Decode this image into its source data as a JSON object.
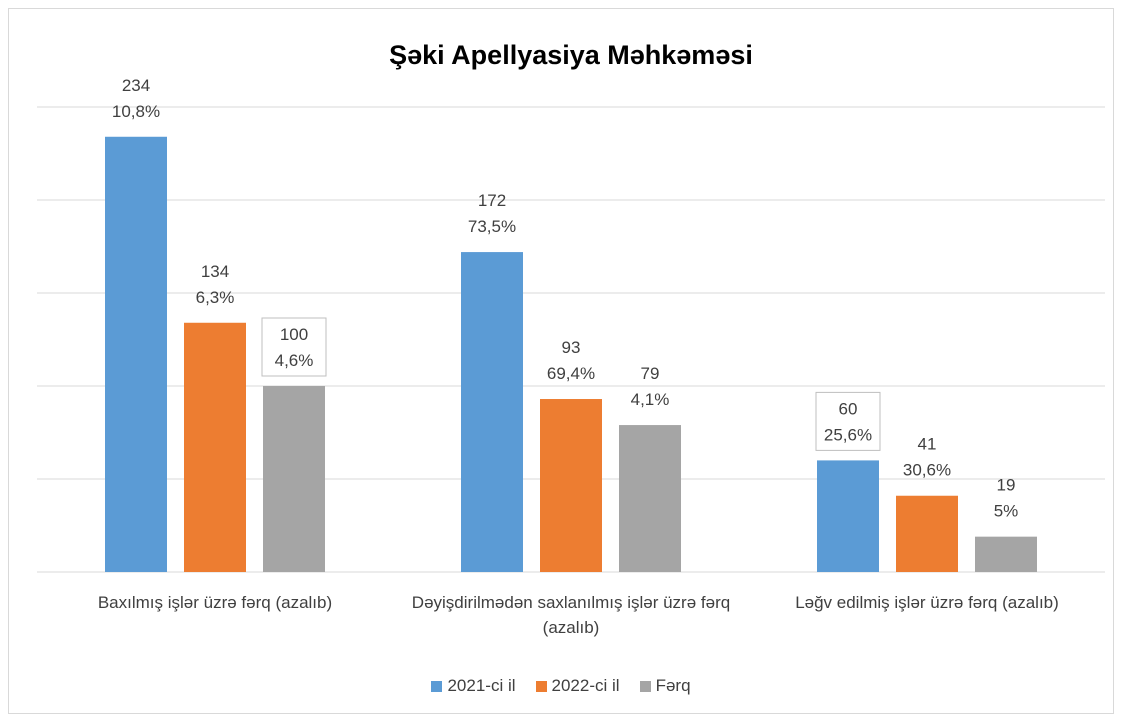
{
  "chart_data": {
    "type": "bar",
    "title": "Şəki Apellyasiya Məhkəməsi",
    "categories": [
      "Baxılmış işlər üzrə fərq  (azalıb)",
      "Dəyişdirilmədən saxlanılmış işlər üzrə fərq (azalıb)",
      "Ləğv edilmiş işlər üzrə fərq  (azalıb)"
    ],
    "series": [
      {
        "name": "2021-ci il",
        "color": "#5b9bd5",
        "values": [
          234,
          172,
          60
        ],
        "percent_labels": [
          "10,8%",
          "73,5%",
          "25,6%"
        ]
      },
      {
        "name": "2022-ci il",
        "color": "#ed7d31",
        "values": [
          134,
          93,
          41
        ],
        "percent_labels": [
          "6,3%",
          "69,4%",
          "30,6%"
        ]
      },
      {
        "name": "Fərq",
        "color": "#a5a5a5",
        "values": [
          100,
          79,
          19
        ],
        "percent_labels": [
          "4,6%",
          "4,1%",
          "5%"
        ]
      }
    ],
    "ylim": [
      0,
      250
    ],
    "yticks": [
      0,
      50,
      100,
      150,
      200,
      250
    ],
    "grid": true,
    "legend": "bottom"
  }
}
